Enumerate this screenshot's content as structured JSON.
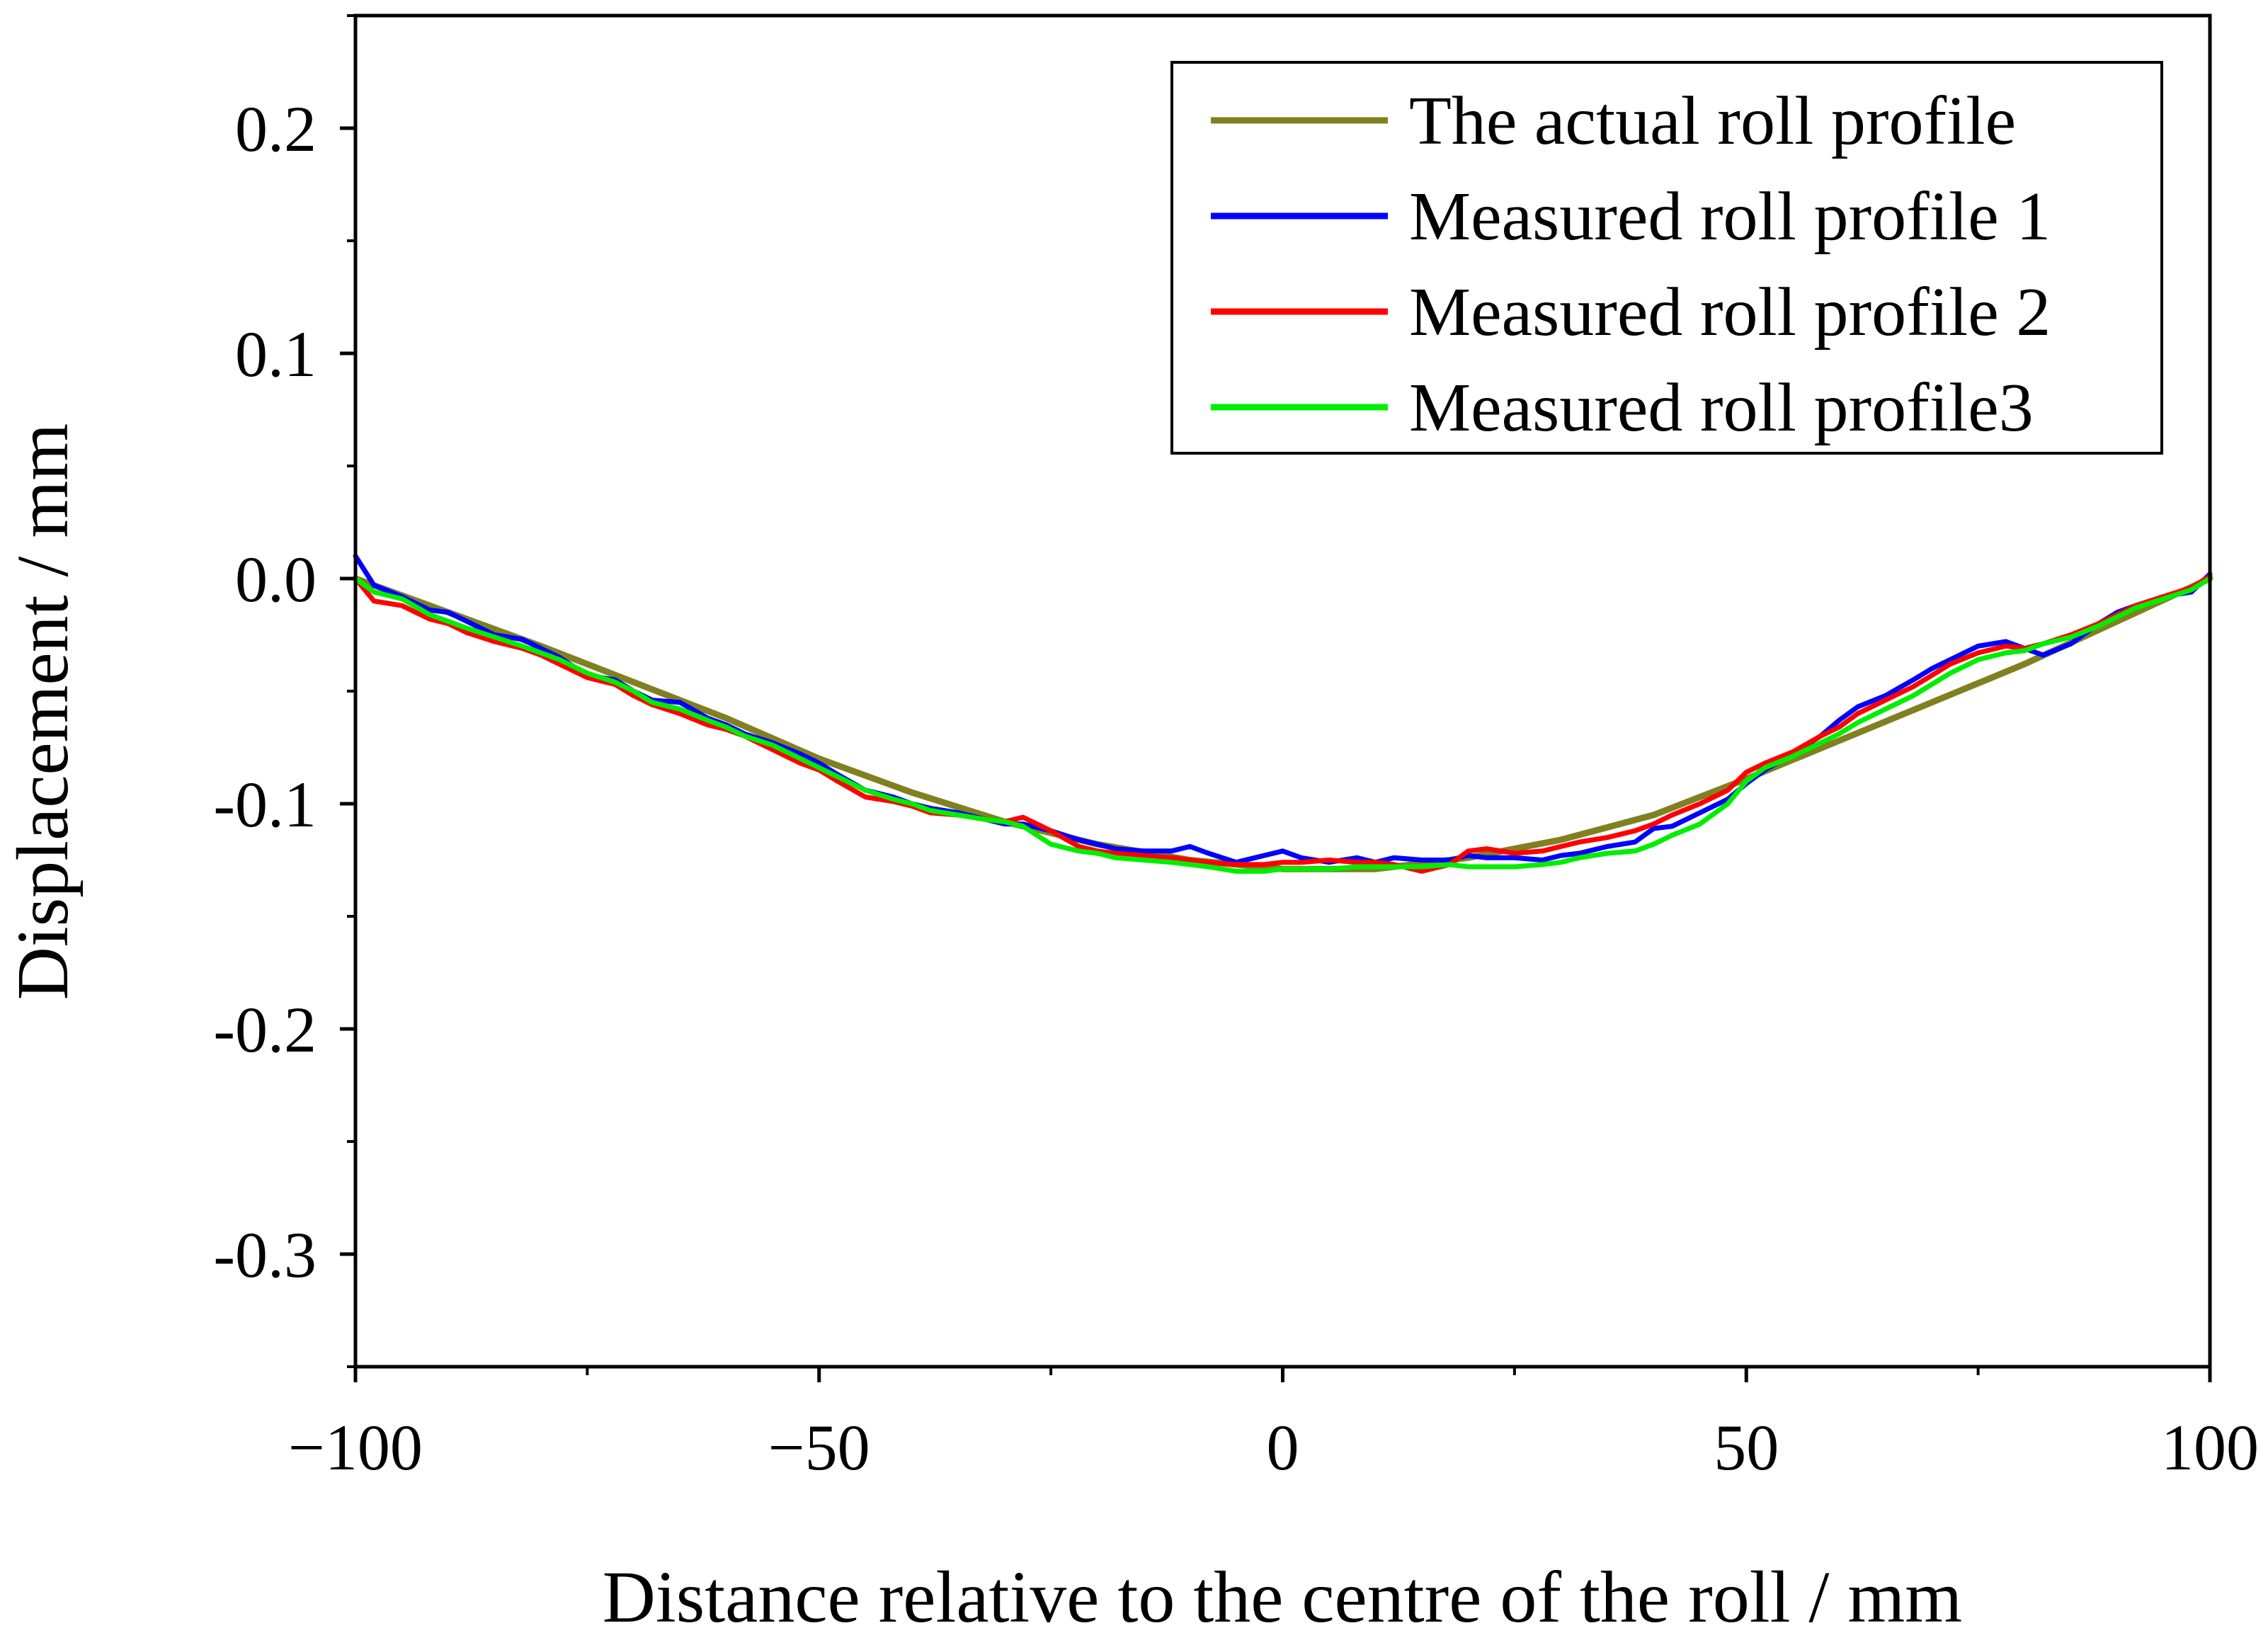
{
  "chart_data": {
    "type": "line",
    "xlabel": "Distance relative to the centre of the roll / mm",
    "ylabel": "Displacement / mm",
    "xlim": [
      -100,
      100
    ],
    "ylim": [
      -0.35,
      0.25
    ],
    "x_ticks": [
      -100,
      -50,
      0,
      50,
      100
    ],
    "x_tick_labels": [
      "−100",
      "−50",
      "0",
      "50",
      "100"
    ],
    "y_ticks": [
      0.2,
      0.1,
      0.0,
      -0.1,
      -0.2,
      -0.3
    ],
    "y_tick_labels": [
      "0.2",
      "0.1",
      "0.0",
      "-0.1",
      "-0.2",
      "-0.3"
    ],
    "legend_position": "top-right",
    "series": [
      {
        "name": "The actual roll profile",
        "color": "#808020",
        "x": [
          -100,
          -90,
          -80,
          -70,
          -60,
          -50,
          -40,
          -30,
          -20,
          -10,
          0,
          10,
          20,
          30,
          40,
          50,
          60,
          70,
          80,
          90,
          100
        ],
        "y": [
          0.0,
          -0.015,
          -0.03,
          -0.046,
          -0.062,
          -0.08,
          -0.095,
          -0.108,
          -0.118,
          -0.125,
          -0.129,
          -0.129,
          -0.124,
          -0.116,
          -0.105,
          -0.089,
          -0.072,
          -0.055,
          -0.038,
          -0.019,
          0.0
        ]
      },
      {
        "name": "Measured roll profile 1",
        "color": "#0000ff",
        "x": [
          -100,
          -98,
          -95,
          -92,
          -90,
          -88,
          -85,
          -82,
          -80,
          -78,
          -75,
          -72,
          -70,
          -68,
          -65,
          -62,
          -60,
          -58,
          -55,
          -52,
          -50,
          -48,
          -45,
          -42,
          -40,
          -38,
          -35,
          -32,
          -30,
          -28,
          -25,
          -22,
          -20,
          -18,
          -15,
          -12,
          -10,
          -8,
          -5,
          -2,
          0,
          2,
          5,
          8,
          10,
          12,
          15,
          18,
          20,
          22,
          25,
          28,
          30,
          32,
          35,
          38,
          40,
          42,
          45,
          48,
          50,
          52,
          55,
          58,
          60,
          62,
          65,
          68,
          70,
          72,
          75,
          78,
          80,
          82,
          85,
          88,
          90,
          92,
          95,
          98,
          100
        ],
        "y": [
          0.01,
          -0.003,
          -0.008,
          -0.014,
          -0.015,
          -0.019,
          -0.025,
          -0.027,
          -0.031,
          -0.035,
          -0.043,
          -0.045,
          -0.05,
          -0.054,
          -0.055,
          -0.062,
          -0.065,
          -0.069,
          -0.073,
          -0.078,
          -0.082,
          -0.087,
          -0.094,
          -0.097,
          -0.1,
          -0.102,
          -0.104,
          -0.107,
          -0.109,
          -0.109,
          -0.112,
          -0.116,
          -0.118,
          -0.12,
          -0.121,
          -0.121,
          -0.119,
          -0.122,
          -0.126,
          -0.123,
          -0.121,
          -0.124,
          -0.126,
          -0.124,
          -0.126,
          -0.124,
          -0.125,
          -0.125,
          -0.123,
          -0.124,
          -0.124,
          -0.125,
          -0.123,
          -0.122,
          -0.119,
          -0.117,
          -0.111,
          -0.11,
          -0.104,
          -0.098,
          -0.091,
          -0.085,
          -0.078,
          -0.07,
          -0.063,
          -0.057,
          -0.052,
          -0.045,
          -0.04,
          -0.036,
          -0.03,
          -0.028,
          -0.031,
          -0.034,
          -0.029,
          -0.02,
          -0.015,
          -0.012,
          -0.008,
          -0.006,
          0.002
        ]
      },
      {
        "name": "Measured roll profile 2",
        "color": "#ff0000",
        "x": [
          -100,
          -98,
          -95,
          -92,
          -90,
          -88,
          -85,
          -82,
          -80,
          -78,
          -75,
          -72,
          -70,
          -68,
          -65,
          -62,
          -60,
          -58,
          -55,
          -52,
          -50,
          -48,
          -45,
          -42,
          -40,
          -38,
          -35,
          -32,
          -30,
          -28,
          -25,
          -22,
          -20,
          -18,
          -15,
          -12,
          -10,
          -8,
          -5,
          -2,
          0,
          2,
          5,
          8,
          10,
          12,
          15,
          18,
          20,
          22,
          25,
          28,
          30,
          32,
          35,
          38,
          40,
          42,
          45,
          48,
          50,
          52,
          55,
          58,
          60,
          62,
          65,
          68,
          70,
          72,
          75,
          78,
          80,
          82,
          85,
          88,
          90,
          92,
          95,
          98,
          100
        ],
        "y": [
          0.0,
          -0.01,
          -0.012,
          -0.018,
          -0.02,
          -0.024,
          -0.028,
          -0.031,
          -0.034,
          -0.038,
          -0.044,
          -0.047,
          -0.052,
          -0.056,
          -0.06,
          -0.065,
          -0.067,
          -0.07,
          -0.076,
          -0.082,
          -0.085,
          -0.09,
          -0.097,
          -0.099,
          -0.101,
          -0.104,
          -0.105,
          -0.107,
          -0.108,
          -0.106,
          -0.112,
          -0.119,
          -0.121,
          -0.122,
          -0.123,
          -0.124,
          -0.125,
          -0.126,
          -0.127,
          -0.127,
          -0.126,
          -0.126,
          -0.125,
          -0.126,
          -0.126,
          -0.127,
          -0.13,
          -0.127,
          -0.121,
          -0.12,
          -0.122,
          -0.121,
          -0.119,
          -0.117,
          -0.115,
          -0.112,
          -0.109,
          -0.105,
          -0.1,
          -0.094,
          -0.086,
          -0.082,
          -0.077,
          -0.07,
          -0.066,
          -0.06,
          -0.054,
          -0.048,
          -0.043,
          -0.038,
          -0.033,
          -0.03,
          -0.031,
          -0.029,
          -0.025,
          -0.02,
          -0.016,
          -0.012,
          -0.008,
          -0.004,
          0.001
        ]
      },
      {
        "name": "Measured roll profile3",
        "color": "#00ee00",
        "x": [
          -100,
          -98,
          -95,
          -92,
          -90,
          -88,
          -85,
          -82,
          -80,
          -78,
          -75,
          -72,
          -70,
          -68,
          -65,
          -62,
          -60,
          -58,
          -55,
          -52,
          -50,
          -48,
          -45,
          -42,
          -40,
          -38,
          -35,
          -32,
          -30,
          -28,
          -25,
          -22,
          -20,
          -18,
          -15,
          -12,
          -10,
          -8,
          -5,
          -2,
          0,
          2,
          5,
          8,
          10,
          12,
          15,
          18,
          20,
          22,
          25,
          28,
          30,
          32,
          35,
          38,
          40,
          42,
          45,
          48,
          50,
          52,
          55,
          58,
          60,
          62,
          65,
          68,
          70,
          72,
          75,
          78,
          80,
          82,
          85,
          88,
          90,
          92,
          95,
          98,
          100
        ],
        "y": [
          0.0,
          -0.006,
          -0.009,
          -0.016,
          -0.019,
          -0.022,
          -0.026,
          -0.03,
          -0.033,
          -0.036,
          -0.042,
          -0.046,
          -0.05,
          -0.055,
          -0.058,
          -0.063,
          -0.066,
          -0.07,
          -0.074,
          -0.08,
          -0.084,
          -0.088,
          -0.094,
          -0.098,
          -0.1,
          -0.103,
          -0.105,
          -0.107,
          -0.108,
          -0.11,
          -0.118,
          -0.121,
          -0.122,
          -0.124,
          -0.125,
          -0.126,
          -0.127,
          -0.128,
          -0.13,
          -0.13,
          -0.129,
          -0.129,
          -0.129,
          -0.128,
          -0.128,
          -0.128,
          -0.128,
          -0.127,
          -0.128,
          -0.128,
          -0.128,
          -0.127,
          -0.126,
          -0.124,
          -0.122,
          -0.121,
          -0.118,
          -0.114,
          -0.109,
          -0.1,
          -0.09,
          -0.084,
          -0.079,
          -0.073,
          -0.069,
          -0.064,
          -0.058,
          -0.052,
          -0.047,
          -0.042,
          -0.036,
          -0.033,
          -0.032,
          -0.029,
          -0.026,
          -0.021,
          -0.017,
          -0.013,
          -0.009,
          -0.005,
          0.0
        ]
      }
    ]
  }
}
